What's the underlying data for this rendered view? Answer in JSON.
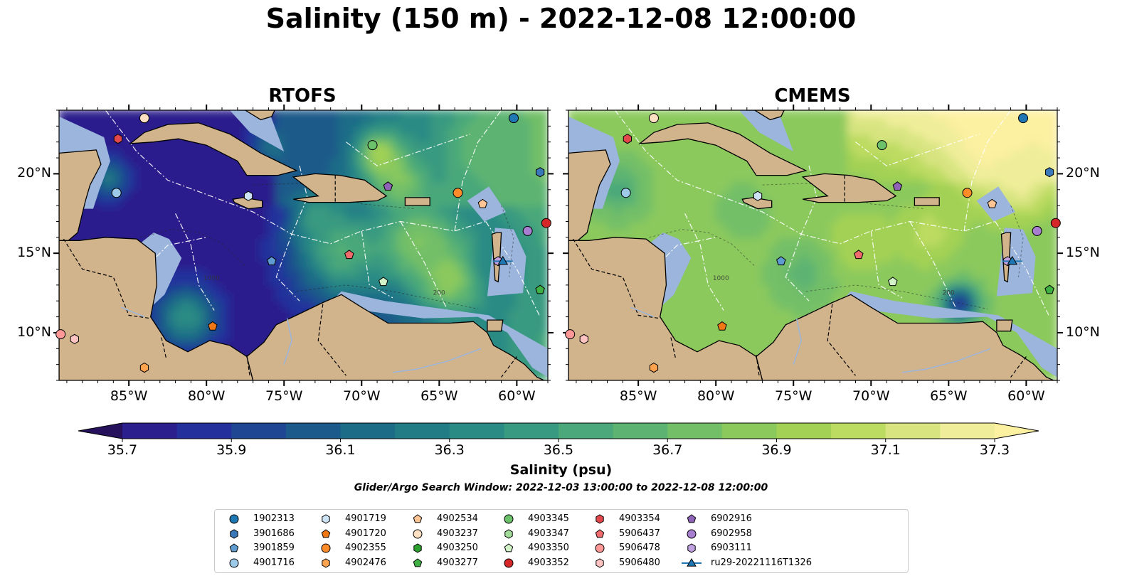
{
  "title": "Salinity (150 m) - 2022-12-08 12:00:00",
  "panels": [
    {
      "title": "RTOFS",
      "model": "rtofs"
    },
    {
      "title": "CMEMS",
      "model": "cmems"
    }
  ],
  "map": {
    "lon_range": [
      -89.5,
      -58.0
    ],
    "lat_range": [
      7.0,
      24.0
    ],
    "lon_ticks": [
      {
        "value": -85,
        "label": "85°W"
      },
      {
        "value": -80,
        "label": "80°W"
      },
      {
        "value": -75,
        "label": "75°W"
      },
      {
        "value": -70,
        "label": "70°W"
      },
      {
        "value": -65,
        "label": "65°W"
      },
      {
        "value": -60,
        "label": "60°W"
      }
    ],
    "lat_ticks": [
      {
        "value": 20,
        "label": "20°N"
      },
      {
        "value": 15,
        "label": "15°N"
      },
      {
        "value": 10,
        "label": "10°N"
      }
    ],
    "land_color": "#d2b48c",
    "shelf_color": "#9bb5dc",
    "contour_labels": [
      "1000",
      "200"
    ]
  },
  "colorbar": {
    "title": "Salinity (psu)",
    "min": 35.6,
    "max": 37.4,
    "step": 0.1,
    "extend": "both",
    "ticks": [
      "35.7",
      "35.9",
      "36.1",
      "36.3",
      "36.5",
      "36.7",
      "36.9",
      "37.1",
      "37.3"
    ]
  },
  "search_window": "Glider/Argo Search Window: 2022-12-03 13:00:00 to 2022-12-08 12:00:00",
  "legend": [
    {
      "id": "1902313",
      "marker": "circle",
      "color": "#1f77b4"
    },
    {
      "id": "3901686",
      "marker": "hexagon",
      "color": "#3a78b9"
    },
    {
      "id": "3901859",
      "marker": "pentagon",
      "color": "#5d9bd0"
    },
    {
      "id": "4901716",
      "marker": "circle",
      "color": "#9ecae9"
    },
    {
      "id": "4901719",
      "marker": "hexagon",
      "color": "#cde3f4"
    },
    {
      "id": "4901720",
      "marker": "pentagon",
      "color": "#f07814"
    },
    {
      "id": "4902355",
      "marker": "circle",
      "color": "#ff8c28"
    },
    {
      "id": "4902476",
      "marker": "hexagon",
      "color": "#ffa34f"
    },
    {
      "id": "4902534",
      "marker": "pentagon",
      "color": "#ffc594"
    },
    {
      "id": "4903237",
      "marker": "circle",
      "color": "#ffe0c2"
    },
    {
      "id": "4903250",
      "marker": "hexagon",
      "color": "#2ca02c"
    },
    {
      "id": "4903277",
      "marker": "pentagon",
      "color": "#3fb043"
    },
    {
      "id": "4903345",
      "marker": "circle",
      "color": "#6cc26a"
    },
    {
      "id": "4903347",
      "marker": "hexagon",
      "color": "#a1dc98"
    },
    {
      "id": "4903350",
      "marker": "pentagon",
      "color": "#d2f2c8"
    },
    {
      "id": "4903352",
      "marker": "circle",
      "color": "#d62728"
    },
    {
      "id": "4903354",
      "marker": "hexagon",
      "color": "#e2474b"
    },
    {
      "id": "5906437",
      "marker": "pentagon",
      "color": "#f06b6b"
    },
    {
      "id": "5906478",
      "marker": "circle",
      "color": "#ff9896"
    },
    {
      "id": "5906480",
      "marker": "hexagon",
      "color": "#ffc4c2"
    },
    {
      "id": "6902916",
      "marker": "pentagon",
      "color": "#8f63b8"
    },
    {
      "id": "6902958",
      "marker": "circle",
      "color": "#a77ed0"
    },
    {
      "id": "6903111",
      "marker": "hexagon",
      "color": "#c2a1e0"
    },
    {
      "id": "ru29-20221116T1326",
      "marker": "triangle-line",
      "color": "#1f77b4"
    }
  ],
  "floats": [
    {
      "id": "4903237",
      "lon": -84.0,
      "lat": 23.5
    },
    {
      "id": "1902313",
      "lon": -60.2,
      "lat": 23.5
    },
    {
      "id": "4903354",
      "lon": -85.7,
      "lat": 22.2
    },
    {
      "id": "4903345",
      "lon": -69.3,
      "lat": 21.8
    },
    {
      "id": "3901686",
      "lon": -58.5,
      "lat": 20.1
    },
    {
      "id": "4901716",
      "lon": -85.8,
      "lat": 18.8
    },
    {
      "id": "4901719",
      "lon": -77.3,
      "lat": 18.6
    },
    {
      "id": "6902916",
      "lon": -68.3,
      "lat": 19.2
    },
    {
      "id": "4902355",
      "lon": -63.8,
      "lat": 18.8
    },
    {
      "id": "4902534",
      "lon": -62.2,
      "lat": 18.1
    },
    {
      "id": "6902958",
      "lon": -59.3,
      "lat": 16.4
    },
    {
      "id": "4903352",
      "lon": -58.1,
      "lat": 16.9
    },
    {
      "id": "5906437",
      "lon": -70.8,
      "lat": 14.9
    },
    {
      "id": "3901859",
      "lon": -75.8,
      "lat": 14.5
    },
    {
      "id": "6903111",
      "lon": -61.2,
      "lat": 14.5
    },
    {
      "id": "4903350",
      "lon": -68.6,
      "lat": 13.2
    },
    {
      "id": "4903277",
      "lon": -58.5,
      "lat": 12.7
    },
    {
      "id": "4901720",
      "lon": -79.6,
      "lat": 10.4
    },
    {
      "id": "5906478",
      "lon": -89.4,
      "lat": 9.9
    },
    {
      "id": "5906480",
      "lon": -88.5,
      "lat": 9.6
    },
    {
      "id": "4902476",
      "lon": -84.0,
      "lat": 7.8
    },
    {
      "id": "ru29-20221116T1326",
      "lon": -60.9,
      "lat": 14.5
    }
  ]
}
